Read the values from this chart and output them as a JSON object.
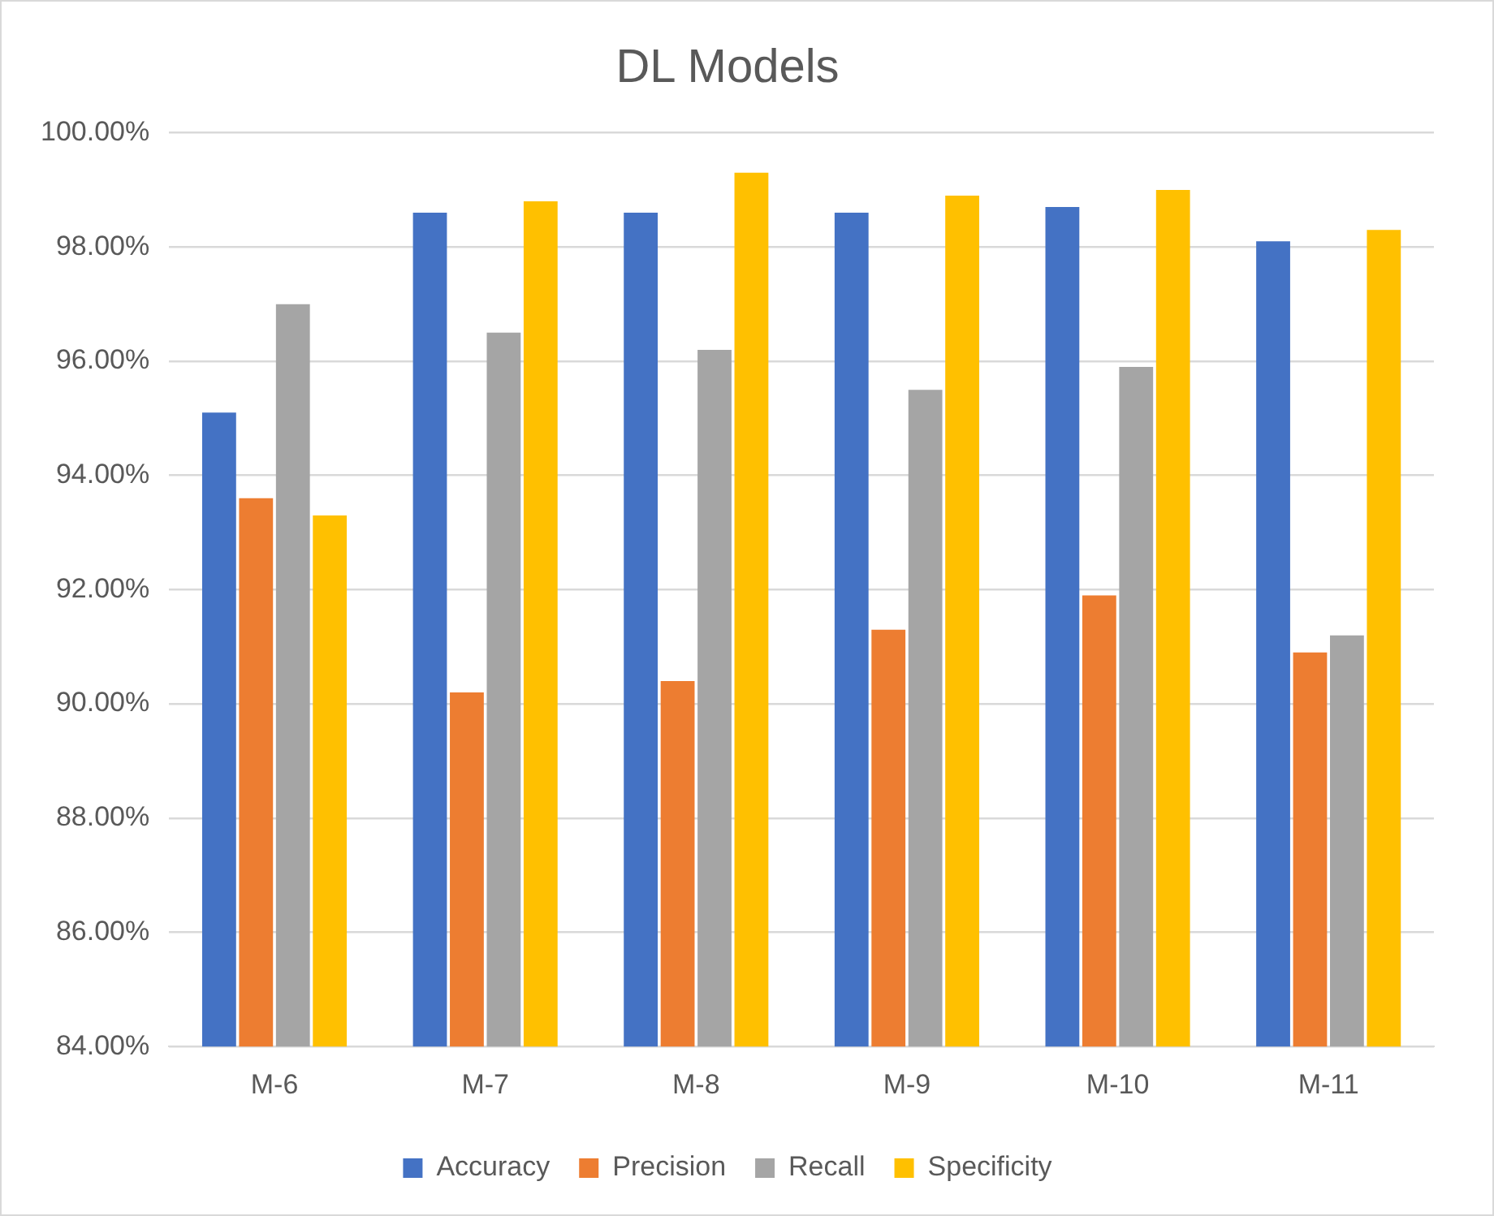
{
  "chart_data": {
    "type": "bar",
    "title": "DL Models",
    "categories": [
      "M-6",
      "M-7",
      "M-8",
      "M-9",
      "M-10",
      "M-11"
    ],
    "series": [
      {
        "name": "Accuracy",
        "color": "#4472c4",
        "values": [
          95.1,
          98.6,
          98.6,
          98.6,
          98.7,
          98.1
        ]
      },
      {
        "name": "Precision",
        "color": "#ed7d31",
        "values": [
          93.6,
          90.2,
          90.4,
          91.3,
          91.9,
          90.9
        ]
      },
      {
        "name": "Recall",
        "color": "#a5a5a5",
        "values": [
          97.0,
          96.5,
          96.2,
          95.5,
          95.9,
          91.2
        ]
      },
      {
        "name": "Specificity",
        "color": "#ffc000",
        "values": [
          93.3,
          98.8,
          99.3,
          98.9,
          99.0,
          98.3
        ]
      }
    ],
    "ylim": [
      84,
      100
    ],
    "yticks": [
      {
        "value": 84,
        "label": "84.00%"
      },
      {
        "value": 86,
        "label": "86.00%"
      },
      {
        "value": 88,
        "label": "88.00%"
      },
      {
        "value": 90,
        "label": "90.00%"
      },
      {
        "value": 92,
        "label": "92.00%"
      },
      {
        "value": 94,
        "label": "94.00%"
      },
      {
        "value": 96,
        "label": "96.00%"
      },
      {
        "value": 98,
        "label": "98.00%"
      },
      {
        "value": 100,
        "label": "100.00%"
      }
    ],
    "grid": "y",
    "legend": "bottom"
  }
}
